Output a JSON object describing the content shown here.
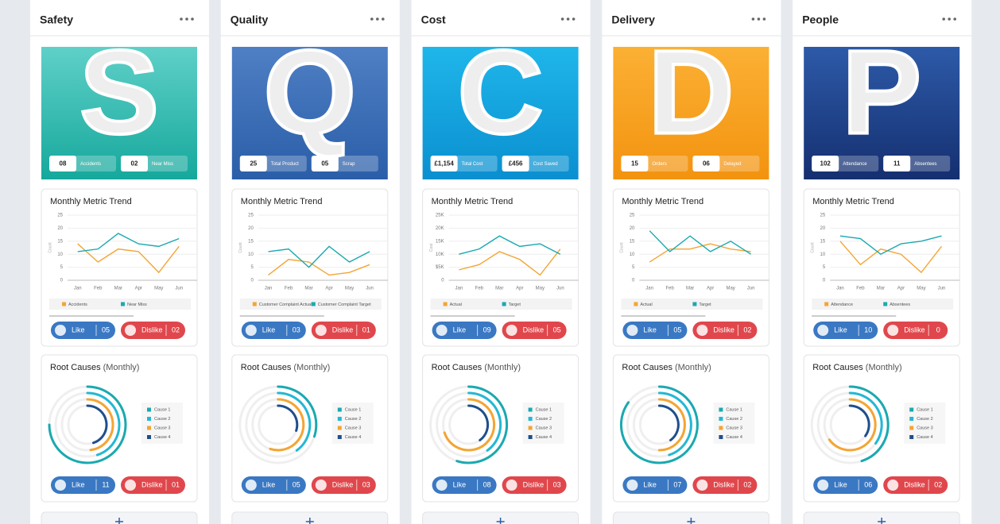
{
  "columns": [
    {
      "title": "Safety",
      "tile": {
        "letter": "S",
        "colors": [
          "#5fd0c8",
          "#16a89c"
        ],
        "stats": [
          {
            "value": "08",
            "label": "Accidents"
          },
          {
            "value": "02",
            "label": "Near Miss"
          }
        ]
      },
      "trend": {
        "title": "Monthly Metric Trend",
        "y_label": "Count",
        "ylim": [
          0,
          25
        ],
        "yticks": [
          0,
          5,
          10,
          15,
          20,
          25
        ],
        "categories": [
          "Jan",
          "Feb",
          "Mar",
          "Apr",
          "May",
          "Jun"
        ],
        "series": [
          {
            "name": "Accidents",
            "color": "#f4a533",
            "values": [
              14,
              7,
              12,
              11,
              3,
              13
            ]
          },
          {
            "name": "Near Miss",
            "color": "#1aa9b0",
            "values": [
              11,
              12,
              18,
              14,
              13,
              16
            ]
          }
        ],
        "like": {
          "label": "Like",
          "count": "05"
        },
        "dislike": {
          "label": "Dislike",
          "count": "02"
        }
      },
      "causes": {
        "title": "Root Causes",
        "suffix": "(Monthly)",
        "legend": [
          "Cause 1",
          "Cause 2",
          "Cause 3",
          "Cause 4"
        ],
        "colors": [
          "#1aa9b0",
          "#22b8d4",
          "#f4a533",
          "#1f4e8c"
        ],
        "values": [
          75,
          45,
          48,
          45
        ],
        "like": {
          "label": "Like",
          "count": "11"
        },
        "dislike": {
          "label": "Dislike",
          "count": "01"
        }
      }
    },
    {
      "title": "Quality",
      "tile": {
        "letter": "Q",
        "colors": [
          "#4f7fc4",
          "#2a5ea8"
        ],
        "stats": [
          {
            "value": "25",
            "label": "Total Product"
          },
          {
            "value": "05",
            "label": "Scrap"
          }
        ]
      },
      "trend": {
        "title": "Monthly Metric Trend",
        "y_label": "Count",
        "ylim": [
          0,
          25
        ],
        "yticks": [
          0,
          5,
          10,
          15,
          20,
          25
        ],
        "categories": [
          "Jan",
          "Feb",
          "Mar",
          "Apr",
          "May",
          "Jun"
        ],
        "series": [
          {
            "name": "Customer Complaint Actual",
            "color": "#f4a533",
            "values": [
              2,
              8,
              7,
              2,
              3,
              6
            ]
          },
          {
            "name": "Customer Complaint Target",
            "color": "#1aa9b0",
            "values": [
              11,
              12,
              5,
              13,
              7,
              11
            ]
          }
        ],
        "like": {
          "label": "Like",
          "count": "03"
        },
        "dislike": {
          "label": "Dislike",
          "count": "01"
        }
      },
      "causes": {
        "title": "Root Causes",
        "suffix": "(Monthly)",
        "legend": [
          "Cause 1",
          "Cause 2",
          "Cause 3",
          "Cause 4"
        ],
        "colors": [
          "#1aa9b0",
          "#22b8d4",
          "#f4a533",
          "#1f4e8c"
        ],
        "values": [
          30,
          40,
          55,
          30
        ],
        "like": {
          "label": "Like",
          "count": "05"
        },
        "dislike": {
          "label": "Dislike",
          "count": "03"
        }
      }
    },
    {
      "title": "Cost",
      "tile": {
        "letter": "C",
        "colors": [
          "#1fb6ea",
          "#0a8fd0"
        ],
        "stats": [
          {
            "value": "£1,154",
            "label": "Total Cost"
          },
          {
            "value": "£456",
            "label": "Cost Saved"
          }
        ]
      },
      "trend": {
        "title": "Monthly Metric Trend",
        "y_label": "Cost",
        "ylim": [
          0,
          25000
        ],
        "yticks": [
          0,
          {
            "value": 5000,
            "label": "$5K"
          },
          {
            "value": 10000,
            "label": "10K"
          },
          {
            "value": 15000,
            "label": "15K"
          },
          {
            "value": 20000,
            "label": "20K"
          },
          {
            "value": 25000,
            "label": "25K"
          }
        ],
        "categories": [
          "Jan",
          "Feb",
          "Mar",
          "Apr",
          "May",
          "Jun"
        ],
        "series": [
          {
            "name": "Actual",
            "color": "#f4a533",
            "values": [
              4000,
              6000,
              11000,
              8000,
              2000,
              12000
            ]
          },
          {
            "name": "Target",
            "color": "#1aa9b0",
            "values": [
              10000,
              12000,
              17000,
              13000,
              14000,
              10000
            ]
          }
        ],
        "like": {
          "label": "Like",
          "count": "09"
        },
        "dislike": {
          "label": "Dislike",
          "count": "05"
        }
      },
      "causes": {
        "title": "Root Causes",
        "suffix": "(Monthly)",
        "legend": [
          "Cause 1",
          "Cause 2",
          "Cause 3",
          "Cause 4"
        ],
        "colors": [
          "#1aa9b0",
          "#22b8d4",
          "#f4a533",
          "#1f4e8c"
        ],
        "values": [
          55,
          40,
          70,
          40
        ],
        "like": {
          "label": "Like",
          "count": "08"
        },
        "dislike": {
          "label": "Dislike",
          "count": "03"
        }
      }
    },
    {
      "title": "Delivery",
      "tile": {
        "letter": "D",
        "colors": [
          "#fbb034",
          "#f3930f"
        ],
        "stats": [
          {
            "value": "15",
            "label": "Orders"
          },
          {
            "value": "06",
            "label": "Delayed"
          }
        ]
      },
      "trend": {
        "title": "Monthly Metric Trend",
        "y_label": "Count",
        "ylim": [
          0,
          25
        ],
        "yticks": [
          0,
          5,
          10,
          15,
          20,
          25
        ],
        "categories": [
          "Jan",
          "Feb",
          "Mar",
          "Apr",
          "May",
          "Jun"
        ],
        "series": [
          {
            "name": "Actual",
            "color": "#f4a533",
            "values": [
              7,
              12,
              12,
              14,
              12,
              11
            ]
          },
          {
            "name": "Target",
            "color": "#1aa9b0",
            "values": [
              19,
              11,
              17,
              11,
              15,
              10
            ]
          }
        ],
        "like": {
          "label": "Like",
          "count": "05"
        },
        "dislike": {
          "label": "Dislike",
          "count": "02"
        }
      },
      "causes": {
        "title": "Root Causes",
        "suffix": "(Monthly)",
        "legend": [
          "Cause 1",
          "Cause 2",
          "Cause 3",
          "Cause 4"
        ],
        "colors": [
          "#1aa9b0",
          "#22b8d4",
          "#f4a533",
          "#1f4e8c"
        ],
        "values": [
          85,
          45,
          50,
          40
        ],
        "like": {
          "label": "Like",
          "count": "07"
        },
        "dislike": {
          "label": "Dislike",
          "count": "02"
        }
      }
    },
    {
      "title": "People",
      "tile": {
        "letter": "P",
        "colors": [
          "#2d5aa8",
          "#152f70"
        ],
        "stats": [
          {
            "value": "102",
            "label": "Attendance"
          },
          {
            "value": "11",
            "label": "Absentees"
          }
        ]
      },
      "trend": {
        "title": "Monthly Metric Trend",
        "y_label": "Count",
        "ylim": [
          0,
          25
        ],
        "yticks": [
          0,
          5,
          10,
          15,
          20,
          25
        ],
        "categories": [
          "Jan",
          "Feb",
          "Mar",
          "Apr",
          "May",
          "Jun"
        ],
        "series": [
          {
            "name": "Attendance",
            "color": "#f4a533",
            "values": [
              15,
              6,
              12,
              10,
              3,
              13
            ]
          },
          {
            "name": "Absentees",
            "color": "#1aa9b0",
            "values": [
              17,
              16,
              10,
              14,
              15,
              17
            ]
          }
        ],
        "like": {
          "label": "Like",
          "count": "10"
        },
        "dislike": {
          "label": "Dislike",
          "count": "0"
        }
      },
      "causes": {
        "title": "Root Causes",
        "suffix": "(Monthly)",
        "legend": [
          "Cause 1",
          "Cause 2",
          "Cause 3",
          "Cause 4"
        ],
        "colors": [
          "#1aa9b0",
          "#22b8d4",
          "#f4a533",
          "#1f4e8c"
        ],
        "values": [
          45,
          35,
          65,
          35
        ],
        "like": {
          "label": "Like",
          "count": "06"
        },
        "dislike": {
          "label": "Dislike",
          "count": "02"
        }
      }
    }
  ]
}
